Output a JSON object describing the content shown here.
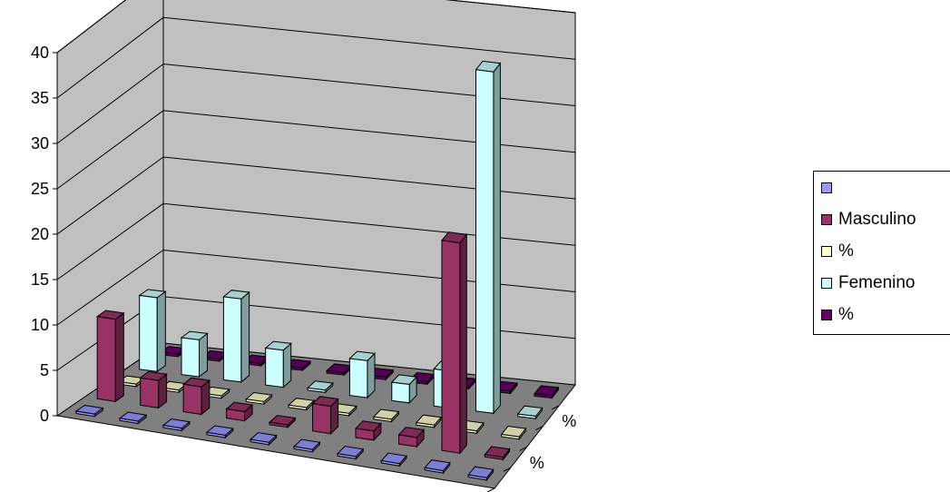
{
  "chart_data": {
    "type": "bar",
    "variant": "3d-column",
    "y_ticks": [
      "0",
      "5",
      "10",
      "15",
      "20",
      "25",
      "30",
      "35",
      "40"
    ],
    "ylim": [
      0,
      40
    ],
    "grid": true,
    "depth_labels": [
      "%",
      "%"
    ],
    "legend_position": "right",
    "series": [
      {
        "name": "",
        "color": "#9999ff",
        "values": [
          0,
          0,
          0,
          0,
          0,
          0,
          0,
          0,
          0,
          0
        ]
      },
      {
        "name": "Masculino",
        "color": "#993366",
        "values": [
          9,
          3,
          3,
          1,
          0,
          3,
          1,
          1,
          23,
          0
        ]
      },
      {
        "name": "%",
        "color": "#ffffcc",
        "values": [
          0,
          0,
          0,
          0,
          0,
          0,
          0,
          0,
          0,
          0
        ]
      },
      {
        "name": "Femenino",
        "color": "#ccffff",
        "values": [
          8,
          4,
          9,
          4,
          0,
          4,
          2,
          4,
          37,
          0
        ]
      },
      {
        "name": "%",
        "color": "#660066",
        "values": [
          0,
          0,
          0,
          0,
          0,
          0,
          0,
          0,
          0,
          0
        ]
      }
    ]
  }
}
